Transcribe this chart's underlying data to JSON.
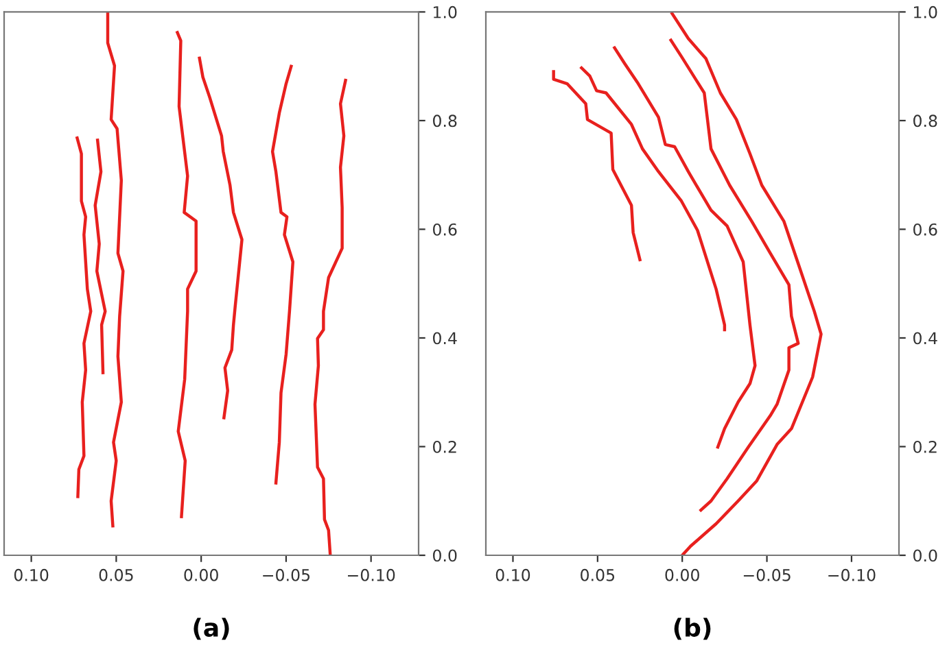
{
  "chart_data": [
    {
      "type": "line",
      "title": "(a)",
      "xlim": [
        0.116,
        -0.128
      ],
      "ylim": [
        0,
        1
      ],
      "xticks": [
        {
          "value": 0.1,
          "label": "0.10"
        },
        {
          "value": 0.05,
          "label": "0.05"
        },
        {
          "value": 0,
          "label": "0.00"
        },
        {
          "value": -0.05,
          "label": "−0.05"
        },
        {
          "value": -0.1,
          "label": "−0.10"
        }
      ],
      "yticks": [
        {
          "value": 0,
          "label": "0.0"
        },
        {
          "value": 0.2,
          "label": "0.2"
        },
        {
          "value": 0.4,
          "label": "0.4"
        },
        {
          "value": 0.6,
          "label": "0.6"
        },
        {
          "value": 0.8,
          "label": "0.8"
        },
        {
          "value": 1,
          "label": "1.0"
        }
      ],
      "grid": false,
      "legend": false,
      "marker": "none",
      "line_style": "solid",
      "series": [
        {
          "color": "#e8201e",
          "x": [
            0.073,
            0.0705,
            0.0705,
            0.068,
            0.069,
            0.067,
            0.065,
            0.069,
            0.068,
            0.07,
            0.069,
            0.072,
            0.0726
          ],
          "values": [
            0.768,
            0.739,
            0.652,
            0.623,
            0.59,
            0.49,
            0.449,
            0.39,
            0.341,
            0.282,
            0.183,
            0.158,
            0.108
          ]
        },
        {
          "color": "#e8201e",
          "x": [
            0.061,
            0.059,
            0.0624,
            0.06,
            0.0614,
            0.0565,
            0.0586,
            0.0578
          ],
          "values": [
            0.764,
            0.706,
            0.644,
            0.573,
            0.523,
            0.449,
            0.424,
            0.336
          ]
        },
        {
          "color": "#e8201e",
          "x": [
            0.055,
            0.055,
            0.051,
            0.053,
            0.0495,
            0.047,
            0.049,
            0.046,
            0.048,
            0.049,
            0.047,
            0.0516,
            0.05,
            0.053,
            0.052
          ],
          "values": [
            1.0,
            0.943,
            0.901,
            0.802,
            0.785,
            0.69,
            0.556,
            0.523,
            0.44,
            0.366,
            0.282,
            0.208,
            0.174,
            0.1,
            0.054
          ]
        },
        {
          "color": "#e8201e",
          "x": [
            0.014,
            0.012,
            0.013,
            0.008,
            0.01,
            0.003,
            0.003,
            0.008,
            0.008,
            0.0097,
            0.0135,
            0.0094,
            0.0116
          ],
          "values": [
            0.962,
            0.947,
            0.826,
            0.698,
            0.631,
            0.615,
            0.523,
            0.49,
            0.449,
            0.324,
            0.228,
            0.174,
            0.071
          ]
        },
        {
          "color": "#e8201e",
          "x": [
            0.001,
            -0.001,
            -0.005,
            -0.012,
            -0.013,
            -0.017,
            -0.019,
            -0.024,
            -0.02,
            -0.019,
            -0.018,
            -0.014,
            -0.0156,
            -0.0134
          ],
          "values": [
            0.915,
            0.88,
            0.843,
            0.772,
            0.743,
            0.681,
            0.631,
            0.581,
            0.457,
            0.424,
            0.378,
            0.345,
            0.303,
            0.253
          ]
        },
        {
          "color": "#e8201e",
          "x": [
            -0.053,
            -0.05,
            -0.046,
            -0.042,
            -0.044,
            -0.047,
            -0.0505,
            -0.049,
            -0.054,
            -0.052,
            -0.05,
            -0.047,
            -0.046,
            -0.044
          ],
          "values": [
            0.9,
            0.868,
            0.814,
            0.743,
            0.706,
            0.631,
            0.623,
            0.59,
            0.54,
            0.449,
            0.37,
            0.299,
            0.208,
            0.133
          ]
        },
        {
          "color": "#e8201e",
          "x": [
            -0.085,
            -0.082,
            -0.084,
            -0.082,
            -0.083,
            -0.083,
            -0.075,
            -0.072,
            -0.072,
            -0.0685,
            -0.069,
            -0.067,
            -0.0685,
            -0.072,
            -0.0726,
            -0.075,
            -0.076
          ],
          "values": [
            0.874,
            0.831,
            0.772,
            0.714,
            0.64,
            0.565,
            0.511,
            0.449,
            0.415,
            0.399,
            0.349,
            0.278,
            0.162,
            0.141,
            0.066,
            0.046,
            0.0
          ]
        }
      ]
    },
    {
      "type": "line",
      "title": "(b)",
      "xlim": [
        0.116,
        -0.128
      ],
      "ylim": [
        0,
        1
      ],
      "xticks": [
        {
          "value": 0.1,
          "label": "0.10"
        },
        {
          "value": 0.05,
          "label": "0.05"
        },
        {
          "value": 0,
          "label": "0.00"
        },
        {
          "value": -0.05,
          "label": "−0.05"
        },
        {
          "value": -0.1,
          "label": "−0.10"
        }
      ],
      "yticks": [
        {
          "value": 0,
          "label": "0.0"
        },
        {
          "value": 0.2,
          "label": "0.2"
        },
        {
          "value": 0.4,
          "label": "0.4"
        },
        {
          "value": 0.6,
          "label": "0.6"
        },
        {
          "value": 0.8,
          "label": "0.8"
        },
        {
          "value": 1,
          "label": "1.0"
        }
      ],
      "grid": false,
      "legend": false,
      "marker": "none",
      "line_style": "solid",
      "series": [
        {
          "color": "#e8201e",
          "x": [
            0.076,
            0.076,
            0.068,
            0.057,
            0.056,
            0.042,
            0.041,
            0.03,
            0.029,
            0.025
          ],
          "values": [
            0.89,
            0.876,
            0.868,
            0.831,
            0.802,
            0.777,
            0.71,
            0.644,
            0.594,
            0.544
          ]
        },
        {
          "color": "#e8201e",
          "x": [
            0.0595,
            0.0546,
            0.0506,
            0.045,
            0.03,
            0.0235,
            0.014,
            0.0005,
            -0.009,
            -0.02,
            -0.025,
            -0.025
          ],
          "values": [
            0.897,
            0.882,
            0.855,
            0.851,
            0.793,
            0.748,
            0.706,
            0.652,
            0.598,
            0.49,
            0.424,
            0.415
          ]
        },
        {
          "color": "#e8201e",
          "x": [
            0.04,
            0.034,
            0.026,
            0.014,
            0.01,
            0.0045,
            -0.0036,
            -0.017,
            -0.0265,
            -0.036,
            -0.04,
            -0.043,
            -0.04,
            -0.033,
            -0.025,
            -0.021
          ],
          "values": [
            0.934,
            0.905,
            0.868,
            0.806,
            0.756,
            0.752,
            0.706,
            0.635,
            0.606,
            0.54,
            0.424,
            0.349,
            0.316,
            0.282,
            0.233,
            0.199
          ]
        },
        {
          "color": "#e8201e",
          "x": [
            0.0067,
            0.0005,
            -0.013,
            -0.017,
            -0.028,
            -0.041,
            -0.052,
            -0.063,
            -0.0645,
            -0.0685,
            -0.063,
            -0.063,
            -0.056,
            -0.052,
            -0.039,
            -0.0265,
            -0.017,
            -0.011
          ],
          "values": [
            0.948,
            0.918,
            0.851,
            0.748,
            0.681,
            0.615,
            0.556,
            0.498,
            0.44,
            0.39,
            0.382,
            0.341,
            0.278,
            0.257,
            0.199,
            0.141,
            0.1,
            0.083
          ]
        },
        {
          "color": "#e8201e",
          "x": [
            0.006,
            -0.0036,
            -0.014,
            -0.0225,
            -0.032,
            -0.04,
            -0.047,
            -0.06,
            -0.07,
            -0.078,
            -0.082,
            -0.077,
            -0.0645,
            -0.056,
            -0.044,
            -0.033,
            -0.02,
            -0.005,
            0.0
          ],
          "values": [
            0.997,
            0.951,
            0.914,
            0.851,
            0.802,
            0.739,
            0.681,
            0.615,
            0.523,
            0.449,
            0.407,
            0.328,
            0.233,
            0.204,
            0.137,
            0.1,
            0.058,
            0.017,
            0.0
          ]
        }
      ]
    }
  ]
}
